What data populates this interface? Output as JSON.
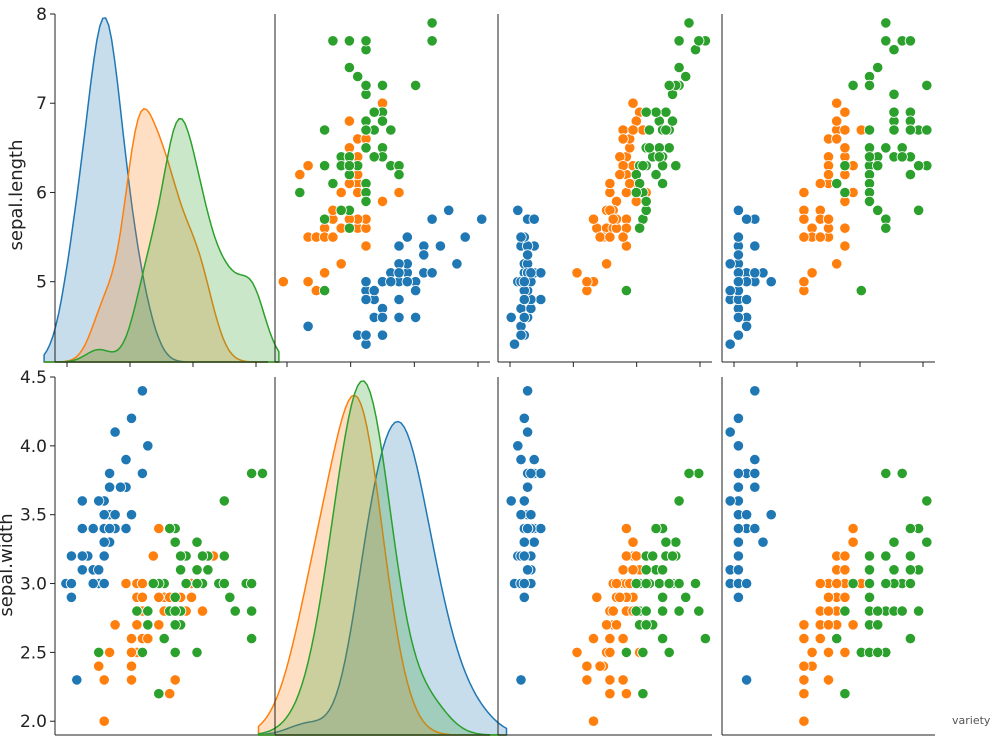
{
  "chart_data": {
    "type": "scatter",
    "layout": "pairplot",
    "variables": [
      "sepal.length",
      "sepal.width"
    ],
    "hue_label": "variety",
    "colors": {
      "Setosa": "#1f77b4",
      "Versicolor": "#ff7f0e",
      "Virginica": "#2ca02c"
    },
    "ranges": {
      "sepal.length": [
        4.1,
        8.0
      ],
      "sepal.width": [
        1.9,
        4.5
      ],
      "petal.length": [
        0.6,
        7.1
      ],
      "petal.width": [
        0.0,
        2.6
      ]
    },
    "ticks": {
      "sepal.length": [
        "5",
        "6",
        "7",
        "8"
      ],
      "sepal.width": [
        "2.0",
        "2.5",
        "3.0",
        "3.5",
        "4.0",
        "4.5"
      ]
    },
    "series": [
      {
        "sepal_length": [
          5.1,
          4.9,
          4.7,
          4.6,
          5.0,
          5.4,
          4.6,
          5.0,
          4.4,
          4.9,
          5.4,
          4.8,
          4.8,
          4.3,
          5.8,
          5.7,
          5.4,
          5.1,
          5.7,
          5.1,
          5.4,
          5.1,
          4.6,
          5.1,
          4.8,
          5.0,
          5.0,
          5.2,
          5.2,
          4.7,
          4.8,
          5.4,
          5.2,
          5.5,
          4.9,
          5.0,
          5.5,
          4.9,
          4.4,
          5.1,
          5.0,
          4.5,
          4.4,
          5.0,
          5.1,
          4.8,
          5.1,
          4.6,
          5.3,
          5.0
        ],
        "sepal_width": [
          3.5,
          3.0,
          3.2,
          3.1,
          3.6,
          3.9,
          3.4,
          3.4,
          2.9,
          3.1,
          3.7,
          3.4,
          3.0,
          3.0,
          4.0,
          4.4,
          3.9,
          3.5,
          3.8,
          3.8,
          3.4,
          3.7,
          3.6,
          3.3,
          3.4,
          3.0,
          3.4,
          3.5,
          3.4,
          3.2,
          3.1,
          3.4,
          4.1,
          4.2,
          3.1,
          3.2,
          3.5,
          3.6,
          3.0,
          3.4,
          3.5,
          2.3,
          3.2,
          3.5,
          3.8,
          3.0,
          3.8,
          3.2,
          3.7,
          3.3
        ],
        "petal_length": [
          1.4,
          1.4,
          1.3,
          1.5,
          1.4,
          1.7,
          1.4,
          1.5,
          1.4,
          1.5,
          1.5,
          1.6,
          1.4,
          1.1,
          1.2,
          1.5,
          1.3,
          1.4,
          1.7,
          1.5,
          1.7,
          1.5,
          1.0,
          1.7,
          1.9,
          1.6,
          1.6,
          1.5,
          1.4,
          1.6,
          1.6,
          1.5,
          1.5,
          1.4,
          1.5,
          1.2,
          1.3,
          1.4,
          1.3,
          1.5,
          1.3,
          1.3,
          1.3,
          1.6,
          1.9,
          1.4,
          1.6,
          1.4,
          1.5,
          1.4
        ],
        "petal_width": [
          0.2,
          0.2,
          0.2,
          0.2,
          0.2,
          0.4,
          0.3,
          0.2,
          0.2,
          0.1,
          0.2,
          0.2,
          0.1,
          0.1,
          0.2,
          0.4,
          0.4,
          0.3,
          0.3,
          0.3,
          0.2,
          0.4,
          0.2,
          0.5,
          0.2,
          0.2,
          0.4,
          0.2,
          0.2,
          0.2,
          0.2,
          0.4,
          0.1,
          0.2,
          0.2,
          0.2,
          0.2,
          0.1,
          0.2,
          0.2,
          0.3,
          0.3,
          0.2,
          0.6,
          0.4,
          0.3,
          0.2,
          0.2,
          0.2,
          0.2
        ]
      },
      {
        "sepal_length": [
          7.0,
          6.4,
          6.9,
          5.5,
          6.5,
          5.7,
          6.3,
          4.9,
          6.6,
          5.2,
          5.0,
          5.9,
          6.0,
          6.1,
          5.6,
          6.7,
          5.6,
          5.8,
          6.2,
          5.6,
          5.9,
          6.1,
          6.3,
          6.1,
          6.4,
          6.6,
          6.8,
          6.7,
          6.0,
          5.7,
          5.5,
          5.5,
          5.8,
          6.0,
          5.4,
          6.0,
          6.7,
          6.3,
          5.6,
          5.5,
          5.5,
          6.1,
          5.8,
          5.0,
          5.6,
          5.7,
          5.7,
          6.2,
          5.1,
          5.7
        ],
        "sepal_width": [
          3.2,
          3.2,
          3.1,
          2.3,
          2.8,
          2.8,
          3.3,
          2.4,
          2.9,
          2.7,
          2.0,
          3.0,
          2.2,
          2.9,
          2.9,
          3.1,
          3.0,
          2.7,
          2.2,
          2.5,
          3.2,
          2.8,
          2.5,
          2.8,
          2.9,
          3.0,
          2.8,
          3.0,
          2.9,
          2.6,
          2.4,
          2.4,
          2.7,
          2.7,
          3.0,
          3.4,
          3.1,
          2.3,
          3.0,
          2.5,
          2.6,
          3.0,
          2.6,
          2.3,
          2.7,
          3.0,
          2.9,
          2.9,
          2.5,
          2.8
        ],
        "petal_length": [
          4.7,
          4.5,
          4.9,
          4.0,
          4.6,
          4.5,
          4.7,
          3.3,
          4.6,
          3.9,
          3.5,
          4.2,
          4.0,
          4.7,
          3.6,
          4.4,
          4.5,
          4.1,
          4.5,
          3.9,
          4.8,
          4.0,
          4.9,
          4.7,
          4.3,
          4.4,
          4.8,
          5.0,
          4.5,
          3.5,
          3.8,
          3.7,
          3.9,
          5.1,
          4.5,
          4.5,
          4.7,
          4.4,
          4.1,
          4.0,
          4.4,
          4.6,
          4.0,
          3.3,
          4.2,
          4.2,
          4.2,
          4.3,
          3.0,
          4.1
        ],
        "petal_width": [
          1.4,
          1.5,
          1.5,
          1.3,
          1.5,
          1.3,
          1.6,
          1.0,
          1.3,
          1.4,
          1.0,
          1.5,
          1.0,
          1.4,
          1.3,
          1.4,
          1.5,
          1.0,
          1.5,
          1.1,
          1.8,
          1.3,
          1.5,
          1.2,
          1.3,
          1.4,
          1.4,
          1.7,
          1.5,
          1.0,
          1.1,
          1.0,
          1.2,
          1.6,
          1.5,
          1.6,
          1.5,
          1.3,
          1.3,
          1.3,
          1.2,
          1.4,
          1.2,
          1.0,
          1.3,
          1.2,
          1.3,
          1.3,
          1.1,
          1.3
        ]
      },
      {
        "sepal_length": [
          6.3,
          5.8,
          7.1,
          6.3,
          6.5,
          7.6,
          4.9,
          7.3,
          6.7,
          7.2,
          6.5,
          6.4,
          6.8,
          5.7,
          5.8,
          6.4,
          6.5,
          7.7,
          7.7,
          6.0,
          6.9,
          5.6,
          7.7,
          6.3,
          6.7,
          7.2,
          6.2,
          6.1,
          6.4,
          7.2,
          7.4,
          7.9,
          6.4,
          6.3,
          6.1,
          7.7,
          6.3,
          6.4,
          6.0,
          6.9,
          6.7,
          6.9,
          5.8,
          6.8,
          6.7,
          6.7,
          6.3,
          6.5,
          6.2,
          5.9
        ],
        "sepal_width": [
          3.3,
          2.7,
          3.0,
          2.9,
          3.0,
          3.0,
          2.5,
          2.9,
          2.5,
          3.6,
          3.2,
          2.7,
          3.0,
          2.5,
          2.8,
          3.2,
          3.0,
          3.8,
          2.6,
          2.2,
          3.2,
          2.8,
          2.8,
          2.7,
          3.3,
          3.2,
          2.8,
          3.0,
          2.8,
          3.0,
          2.8,
          3.8,
          2.8,
          2.8,
          2.6,
          3.0,
          3.4,
          3.1,
          3.0,
          3.1,
          3.1,
          3.1,
          2.7,
          3.2,
          3.3,
          3.0,
          2.5,
          3.0,
          3.4,
          3.0
        ],
        "petal_length": [
          6.0,
          5.1,
          5.9,
          5.6,
          5.8,
          6.6,
          4.5,
          6.3,
          5.8,
          6.1,
          5.1,
          5.3,
          5.5,
          5.0,
          5.1,
          5.3,
          5.5,
          6.7,
          6.9,
          5.0,
          5.7,
          4.9,
          6.7,
          4.9,
          5.7,
          6.0,
          4.8,
          4.9,
          5.6,
          5.8,
          6.1,
          6.4,
          5.6,
          5.1,
          5.6,
          6.1,
          5.6,
          5.5,
          4.8,
          5.4,
          5.6,
          5.1,
          5.1,
          5.9,
          5.7,
          5.2,
          5.0,
          5.2,
          5.4,
          5.1
        ],
        "petal_width": [
          2.5,
          1.9,
          2.1,
          1.8,
          2.2,
          2.1,
          1.7,
          1.8,
          1.8,
          2.5,
          2.0,
          1.9,
          2.1,
          2.0,
          2.4,
          2.3,
          1.8,
          2.2,
          2.3,
          1.5,
          2.3,
          2.0,
          2.0,
          1.8,
          2.1,
          1.8,
          1.8,
          1.8,
          2.1,
          1.6,
          1.9,
          2.0,
          2.2,
          1.5,
          1.4,
          2.3,
          2.4,
          1.8,
          1.8,
          2.1,
          2.4,
          2.3,
          1.9,
          2.3,
          2.5,
          2.3,
          1.9,
          2.0,
          2.3,
          1.8
        ]
      }
    ]
  }
}
